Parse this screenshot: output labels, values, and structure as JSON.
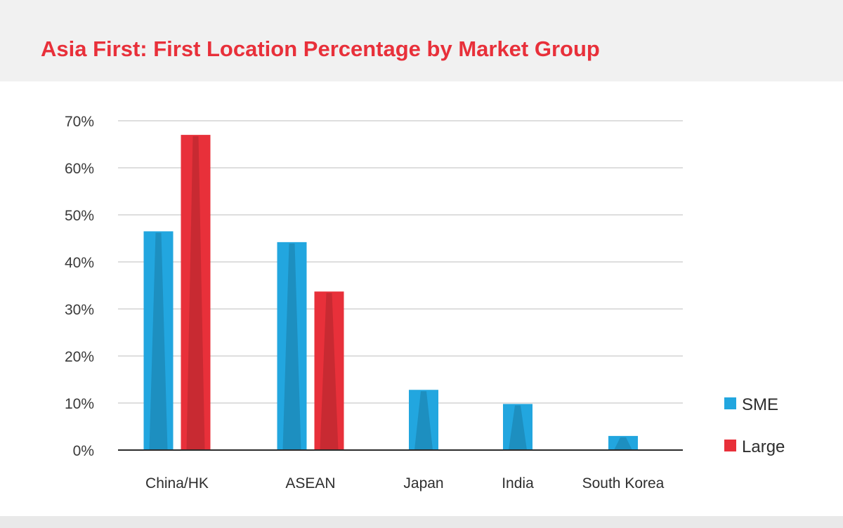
{
  "chart_data": {
    "type": "bar",
    "title": "Asia First: First Location Percentage by Market Group",
    "xlabel": "",
    "ylabel": "",
    "categories": [
      "China/HK",
      "ASEAN",
      "Japan",
      "India",
      "South Korea"
    ],
    "series": [
      {
        "name": "SME",
        "color": "#22a6df",
        "values": [
          46.5,
          44.2,
          12.8,
          9.8,
          3.0
        ]
      },
      {
        "name": "Large",
        "color": "#e8303a",
        "values": [
          67.0,
          33.7,
          0,
          0,
          0
        ]
      }
    ],
    "ylim": [
      0,
      70
    ],
    "yticks": [
      0,
      10,
      20,
      30,
      40,
      50,
      60,
      70
    ],
    "ytick_labels": [
      "0%",
      "10%",
      "20%",
      "30%",
      "40%",
      "50%",
      "60%",
      "70%"
    ],
    "grid": true,
    "legend_position": "right"
  }
}
